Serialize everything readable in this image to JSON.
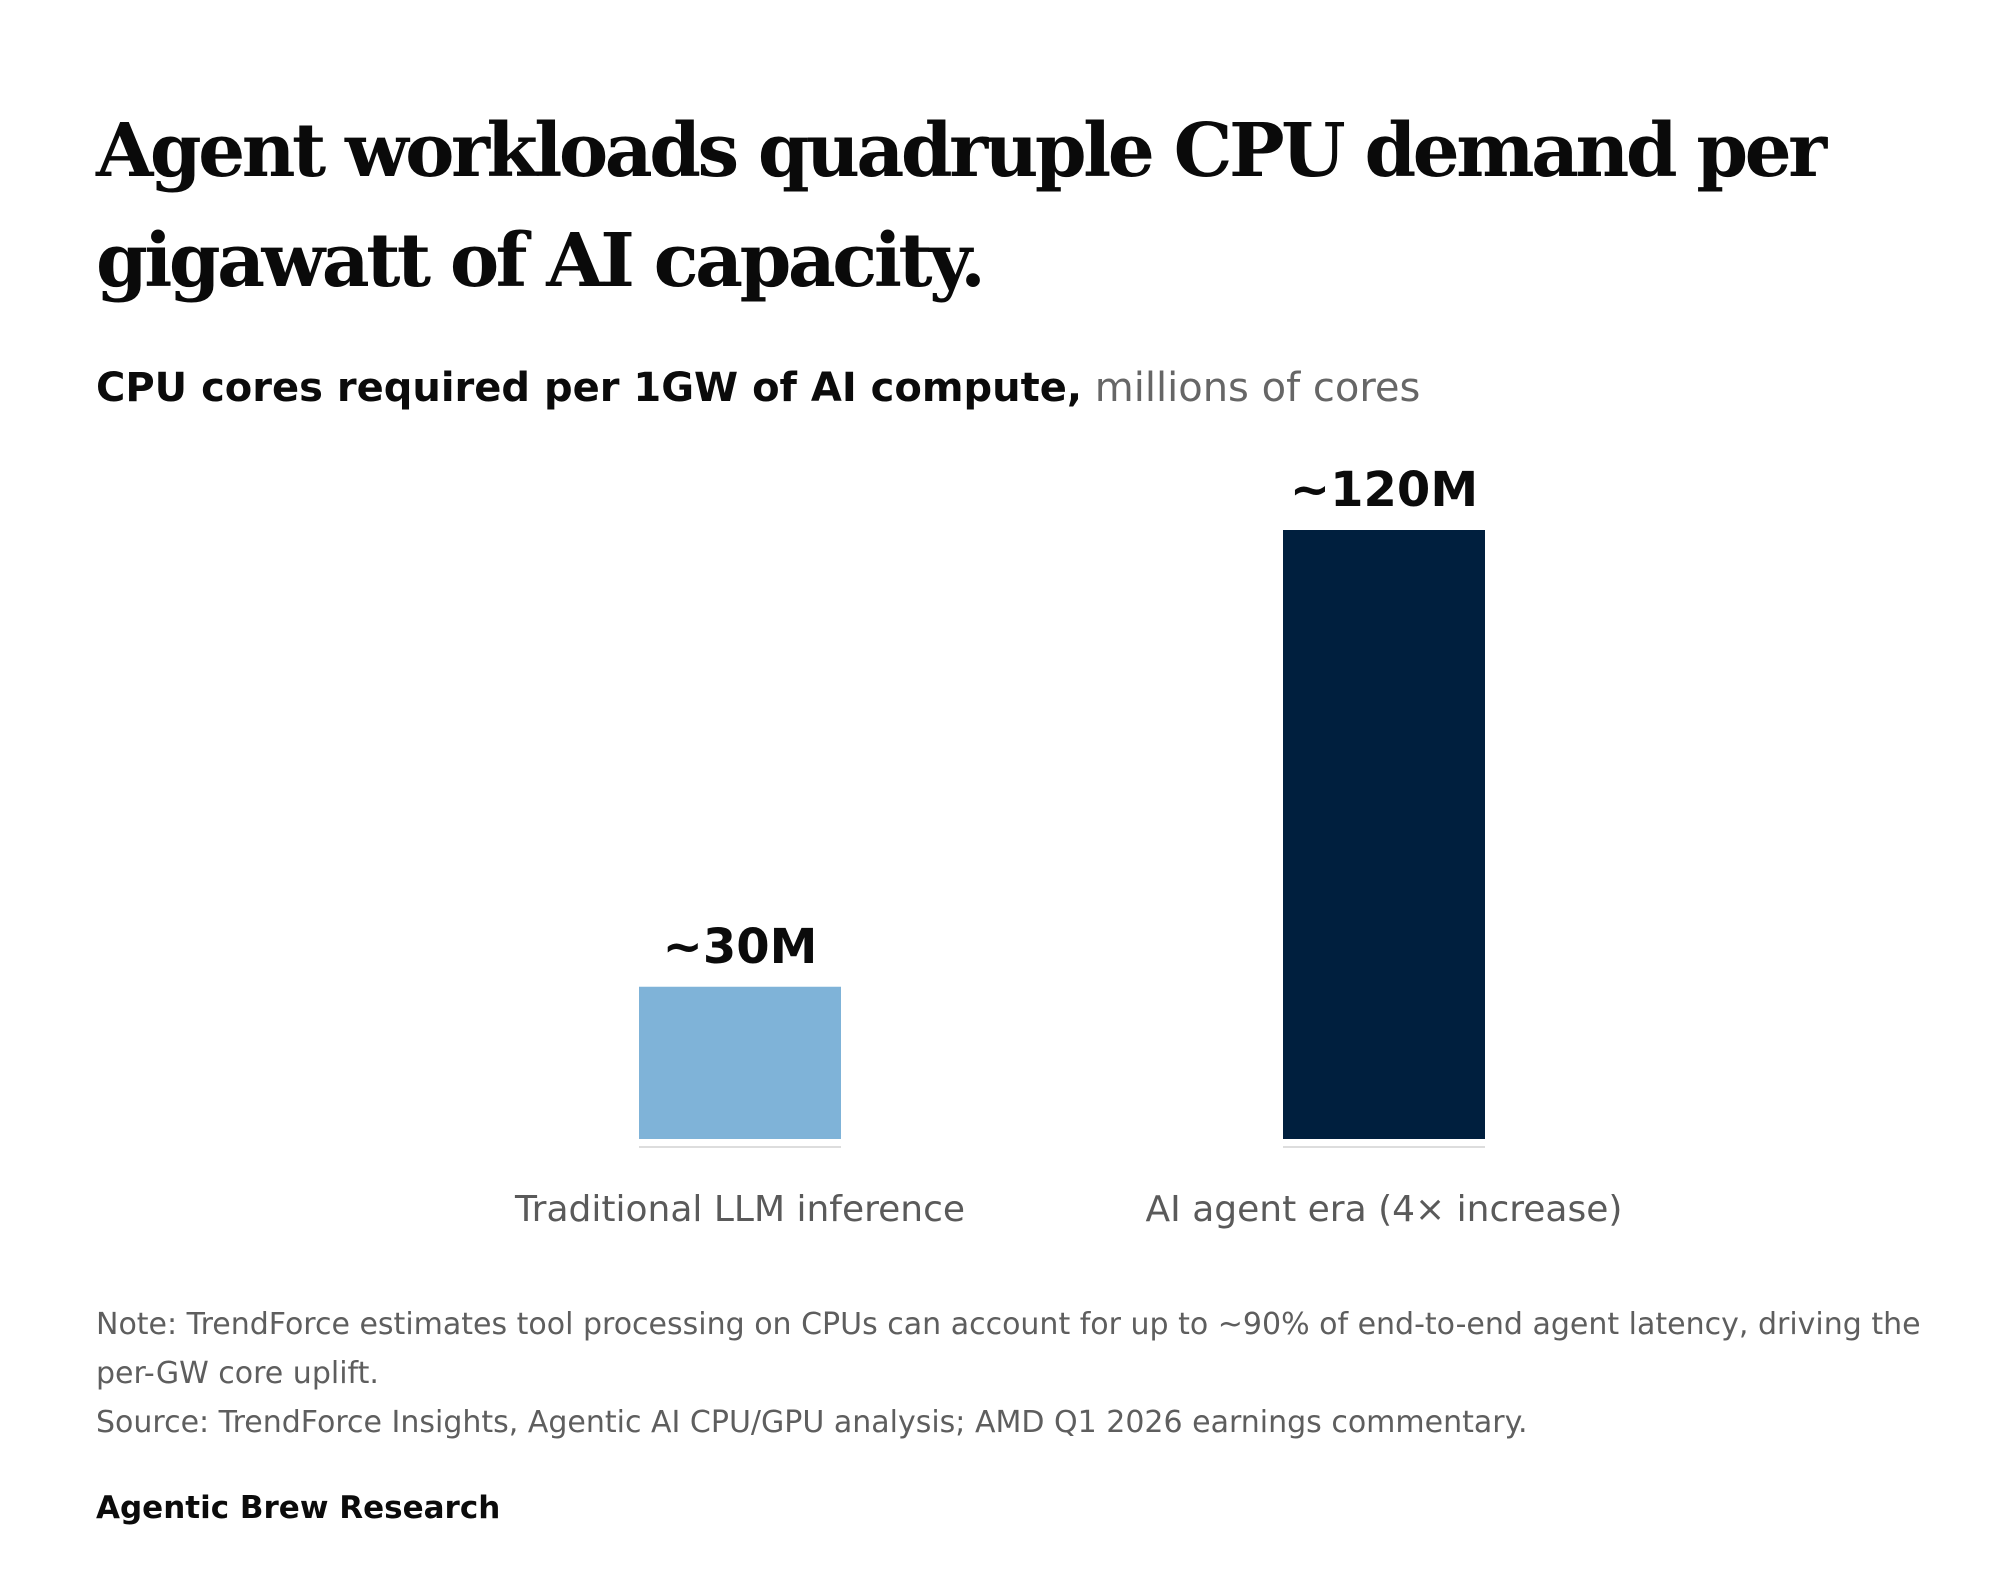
{
  "headline": "Agent workloads quadruple CPU demand per gigawatt of AI capacity.",
  "subtitle": {
    "main": "CPU cores required per 1GW of AI compute,",
    "unit": "millions of cores"
  },
  "chart_data": {
    "type": "bar",
    "categories": [
      "Traditional LLM inference",
      "AI agent era (4× increase)"
    ],
    "values": [
      30,
      120
    ],
    "data_labels": [
      "~30M",
      "~120M"
    ],
    "colors": [
      "#7fb3d8",
      "#001f3e"
    ],
    "title": "CPU cores required per 1GW of AI compute,",
    "unit": "millions of cores",
    "xlabel": "",
    "ylabel": "",
    "ylim": [
      0,
      120
    ],
    "grid": false,
    "legend": "none"
  },
  "footer": {
    "note": "Note: TrendForce estimates tool processing on CPUs can account for up to ~90% of end-to-end agent latency, driving the per-GW core uplift.",
    "source": "Source: TrendForce Insights, Agentic AI CPU/GPU analysis; AMD Q1 2026 earnings commentary.",
    "brand": "Agentic Brew Research"
  },
  "colors": {
    "title": "#0a0a0a",
    "muted_text": "#666666",
    "baseline": "#dddddd"
  }
}
